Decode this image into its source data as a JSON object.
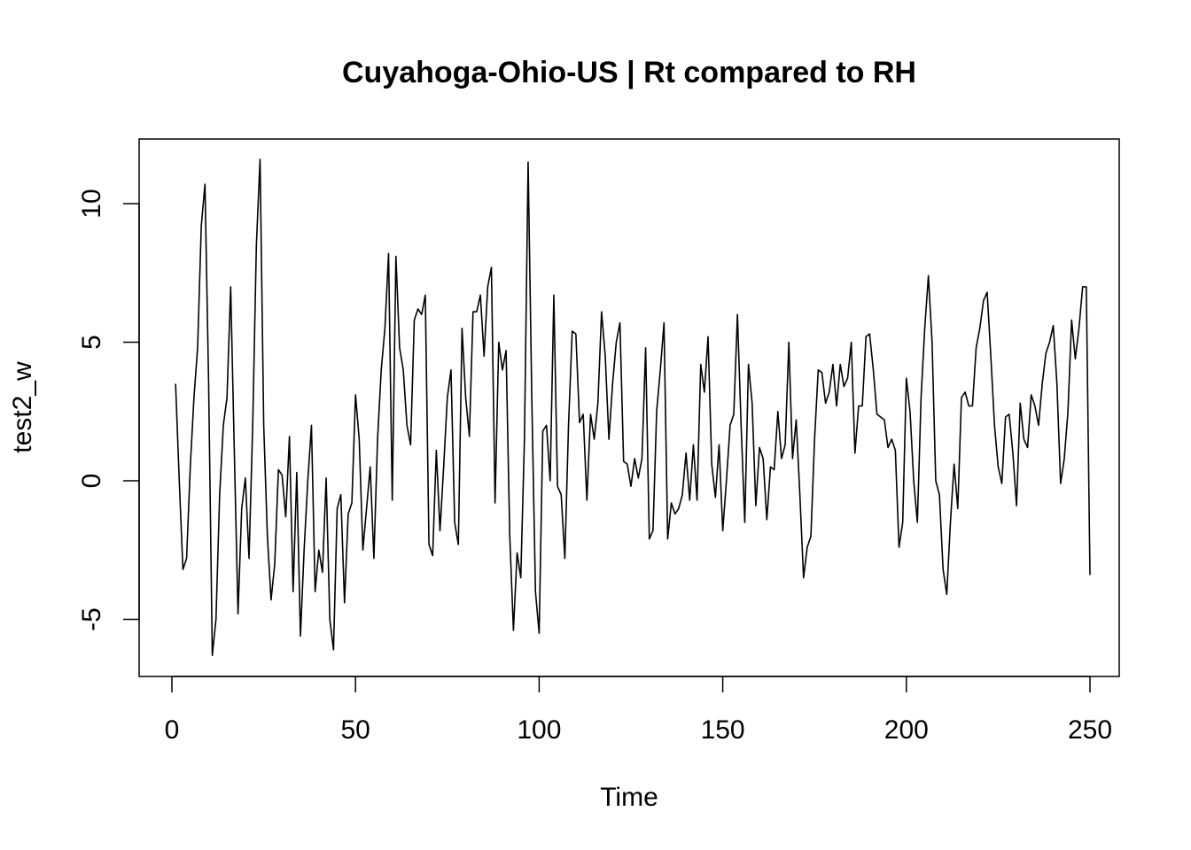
{
  "chart_data": {
    "type": "line",
    "title": "Cuyahoga-Ohio-US | Rt compared to RH",
    "xlabel": "Time",
    "ylabel": "test2_w",
    "xlim": [
      0,
      250
    ],
    "ylim": [
      -5,
      10
    ],
    "x_ticks": [
      0,
      50,
      100,
      150,
      200,
      250
    ],
    "y_ticks": [
      -5,
      0,
      5,
      10
    ],
    "grid": false,
    "x_start": 1,
    "series": [
      {
        "values": [
          3.5,
          0.0,
          -3.2,
          -2.8,
          0.5,
          3.0,
          4.8,
          9.2,
          10.7,
          3.5,
          -6.3,
          -5.0,
          -0.5,
          2.0,
          3.0,
          7.0,
          1.0,
          -4.8,
          -1.0,
          0.1,
          -2.8,
          2.0,
          8.5,
          11.6,
          2.0,
          -2.0,
          -4.3,
          -3.0,
          0.4,
          0.2,
          -1.3,
          1.6,
          -4.0,
          0.3,
          -5.6,
          -2.5,
          0.0,
          2.0,
          -4.0,
          -2.5,
          -3.3,
          0.1,
          -5.0,
          -6.1,
          -1.0,
          -0.5,
          -4.4,
          -1.2,
          -0.8,
          3.1,
          1.5,
          -2.5,
          -1.0,
          0.5,
          -2.8,
          1.5,
          4.0,
          5.5,
          8.2,
          -0.7,
          8.1,
          4.8,
          4.0,
          2.0,
          1.3,
          5.8,
          6.2,
          6.0,
          6.7,
          -2.3,
          -2.7,
          1.1,
          -1.8,
          0.5,
          3.0,
          4.0,
          -1.5,
          -2.3,
          5.5,
          3.0,
          1.6,
          6.1,
          6.1,
          6.7,
          4.5,
          7.0,
          7.7,
          -0.8,
          5.0,
          4.0,
          4.7,
          -2.0,
          -5.4,
          -2.6,
          -3.5,
          1.5,
          11.5,
          3.0,
          -4.0,
          -5.5,
          1.8,
          2.0,
          0.0,
          6.7,
          -0.2,
          -0.5,
          -2.8,
          2.0,
          5.4,
          5.3,
          2.1,
          2.4,
          -0.7,
          2.4,
          1.5,
          2.8,
          6.1,
          4.5,
          1.5,
          3.5,
          5.0,
          5.7,
          0.7,
          0.6,
          -0.2,
          0.8,
          0.1,
          0.8,
          4.8,
          -2.1,
          -1.8,
          2.5,
          4.0,
          5.7,
          -2.1,
          -0.8,
          -1.2,
          -1.0,
          -0.5,
          1.0,
          -0.7,
          1.3,
          -0.7,
          4.2,
          3.2,
          5.2,
          0.6,
          -0.6,
          1.3,
          -1.8,
          0.0,
          2.0,
          2.4,
          6.0,
          2.0,
          -1.5,
          4.2,
          2.8,
          -0.9,
          1.2,
          0.8,
          -1.4,
          0.5,
          0.4,
          2.5,
          0.8,
          1.3,
          5.0,
          0.8,
          2.2,
          -0.5,
          -3.5,
          -2.4,
          -2.0,
          1.5,
          4.0,
          3.9,
          2.8,
          3.2,
          4.2,
          2.7,
          4.2,
          3.4,
          3.7,
          5.0,
          1.0,
          2.7,
          2.7,
          5.2,
          5.3,
          4.0,
          2.4,
          2.3,
          2.2,
          1.2,
          1.5,
          1.1,
          -2.4,
          -1.5,
          3.7,
          2.5,
          0.0,
          -1.5,
          3.0,
          5.5,
          7.4,
          5.0,
          0.0,
          -0.5,
          -3.2,
          -4.1,
          -1.5,
          0.6,
          -1.0,
          3.0,
          3.2,
          2.7,
          2.7,
          4.8,
          5.5,
          6.5,
          6.8,
          4.5,
          2.0,
          0.5,
          -0.1,
          2.3,
          2.4,
          1.0,
          -0.9,
          2.8,
          1.5,
          1.2,
          3.1,
          2.7,
          2.0,
          3.5,
          4.6,
          5.0,
          5.6,
          3.5,
          -0.1,
          0.8,
          2.5,
          5.8,
          4.4,
          5.5,
          7.0,
          7.0,
          -3.4
        ]
      }
    ]
  }
}
